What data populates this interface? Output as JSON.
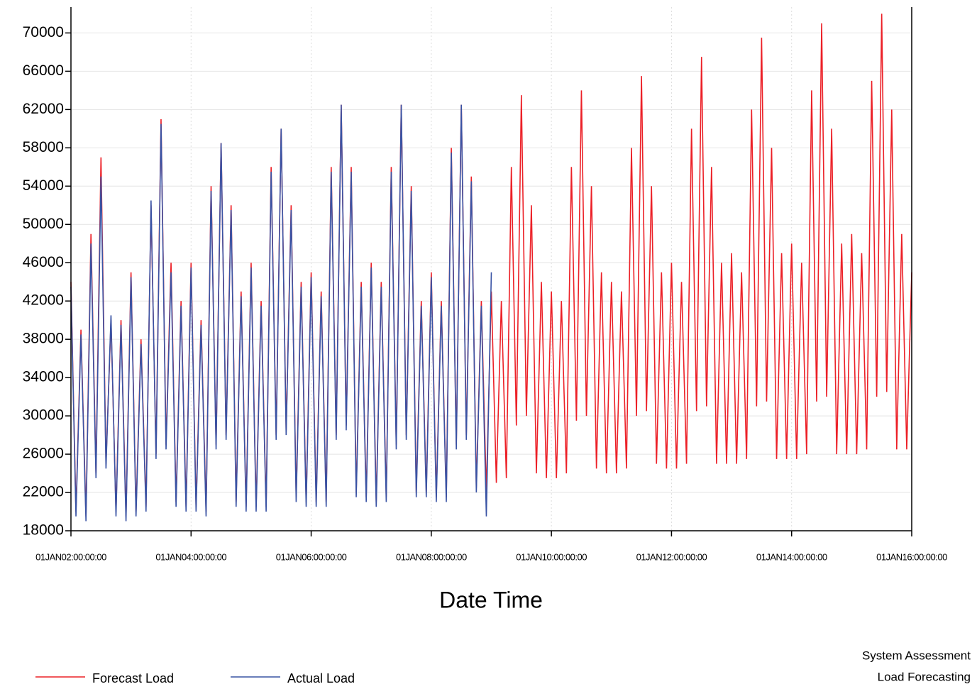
{
  "chart_data": {
    "type": "line",
    "x_label": "Date Time",
    "footnotes": [
      "System Assessment",
      "Load Forecasting"
    ],
    "legend": "bottom-left",
    "grid": true,
    "x": [
      "2002-01",
      "2002-02",
      "2002-03",
      "2002-04",
      "2002-05",
      "2002-06",
      "2002-07",
      "2002-08",
      "2002-09",
      "2002-10",
      "2002-11",
      "2002-12",
      "2003-01",
      "2003-02",
      "2003-03",
      "2003-04",
      "2003-05",
      "2003-06",
      "2003-07",
      "2003-08",
      "2003-09",
      "2003-10",
      "2003-11",
      "2003-12",
      "2004-01",
      "2004-02",
      "2004-03",
      "2004-04",
      "2004-05",
      "2004-06",
      "2004-07",
      "2004-08",
      "2004-09",
      "2004-10",
      "2004-11",
      "2004-12",
      "2005-01",
      "2005-02",
      "2005-03",
      "2005-04",
      "2005-05",
      "2005-06",
      "2005-07",
      "2005-08",
      "2005-09",
      "2005-10",
      "2005-11",
      "2005-12",
      "2006-01",
      "2006-02",
      "2006-03",
      "2006-04",
      "2006-05",
      "2006-06",
      "2006-07",
      "2006-08",
      "2006-09",
      "2006-10",
      "2006-11",
      "2006-12",
      "2007-01",
      "2007-02",
      "2007-03",
      "2007-04",
      "2007-05",
      "2007-06",
      "2007-07",
      "2007-08",
      "2007-09",
      "2007-10",
      "2007-11",
      "2007-12",
      "2008-01",
      "2008-02",
      "2008-03",
      "2008-04",
      "2008-05",
      "2008-06",
      "2008-07",
      "2008-08",
      "2008-09",
      "2008-10",
      "2008-11",
      "2008-12",
      "2009-01",
      "2009-02",
      "2009-03",
      "2009-04",
      "2009-05",
      "2009-06",
      "2009-07",
      "2009-08",
      "2009-09",
      "2009-10",
      "2009-11",
      "2009-12",
      "2010-01",
      "2010-02",
      "2010-03",
      "2010-04",
      "2010-05",
      "2010-06",
      "2010-07",
      "2010-08",
      "2010-09",
      "2010-10",
      "2010-11",
      "2010-12",
      "2011-01",
      "2011-02",
      "2011-03",
      "2011-04",
      "2011-05",
      "2011-06",
      "2011-07",
      "2011-08",
      "2011-09",
      "2011-10",
      "2011-11",
      "2011-12",
      "2012-01",
      "2012-02",
      "2012-03",
      "2012-04",
      "2012-05",
      "2012-06",
      "2012-07",
      "2012-08",
      "2012-09",
      "2012-10",
      "2012-11",
      "2012-12",
      "2013-01",
      "2013-02",
      "2013-03",
      "2013-04",
      "2013-05",
      "2013-06",
      "2013-07",
      "2013-08",
      "2013-09",
      "2013-10",
      "2013-11",
      "2013-12",
      "2014-01",
      "2014-02",
      "2014-03",
      "2014-04",
      "2014-05",
      "2014-06",
      "2014-07",
      "2014-08",
      "2014-09",
      "2014-10",
      "2014-11",
      "2014-12",
      "2015-01",
      "2015-02",
      "2015-03",
      "2015-04",
      "2015-05",
      "2015-06",
      "2015-07",
      "2015-08",
      "2015-09",
      "2015-10",
      "2015-11",
      "2015-12",
      "2016-01"
    ],
    "series": [
      {
        "name": "Forecast Load",
        "color": "#ec2027",
        "values": [
          44000,
          20000,
          39000,
          19500,
          49000,
          24000,
          57000,
          25000,
          40000,
          20000,
          40000,
          19500,
          45000,
          20000,
          38000,
          20500,
          52000,
          26000,
          61000,
          27000,
          46000,
          21000,
          42000,
          20500,
          46000,
          20500,
          40000,
          20000,
          54000,
          27000,
          58500,
          28000,
          52000,
          21000,
          43000,
          20500,
          46000,
          20500,
          42000,
          20500,
          56000,
          28000,
          60000,
          28500,
          52000,
          21500,
          44000,
          21000,
          45000,
          21000,
          43000,
          21000,
          56000,
          28000,
          62500,
          29000,
          56000,
          22000,
          44000,
          21500,
          46000,
          21000,
          44000,
          21500,
          56000,
          27000,
          62500,
          28000,
          54000,
          22000,
          42000,
          22000,
          45000,
          21500,
          42000,
          21500,
          58000,
          27000,
          62500,
          28000,
          55000,
          22500,
          42000,
          22000,
          43000,
          23000,
          42000,
          23500,
          56000,
          29000,
          63500,
          30000,
          52000,
          24000,
          44000,
          23500,
          43000,
          23500,
          42000,
          24000,
          56000,
          29500,
          64000,
          30000,
          54000,
          24500,
          45000,
          24000,
          44000,
          24000,
          43000,
          24500,
          58000,
          30000,
          65500,
          30500,
          54000,
          25000,
          45000,
          24500,
          46000,
          24500,
          44000,
          25000,
          60000,
          30500,
          67500,
          31000,
          56000,
          25000,
          46000,
          25000,
          47000,
          25000,
          45000,
          25500,
          62000,
          31000,
          69500,
          31500,
          58000,
          25500,
          47000,
          25500,
          48000,
          25500,
          46000,
          26000,
          64000,
          31500,
          71000,
          32000,
          60000,
          26000,
          48000,
          26000,
          49000,
          26000,
          47000,
          26500,
          65000,
          32000,
          72000,
          32500,
          62000,
          26500,
          49000,
          26500,
          45000
        ]
      },
      {
        "name": "Actual Load",
        "color": "#3953a4",
        "values": [
          43500,
          19500,
          38500,
          19000,
          48000,
          23500,
          55000,
          24500,
          40500,
          19500,
          39500,
          19000,
          44500,
          19500,
          37500,
          20000,
          52500,
          25500,
          60500,
          26500,
          45000,
          20500,
          41500,
          20000,
          45500,
          20000,
          39500,
          19500,
          53500,
          26500,
          58500,
          27500,
          51500,
          20500,
          42500,
          20000,
          45500,
          20000,
          41500,
          20000,
          55500,
          27500,
          60000,
          28000,
          51500,
          21000,
          43500,
          20500,
          44500,
          20500,
          42500,
          20500,
          55500,
          27500,
          62500,
          28500,
          55500,
          21500,
          43500,
          21000,
          45500,
          20500,
          43500,
          21000,
          55500,
          26500,
          62500,
          27500,
          53500,
          21500,
          41500,
          21500,
          44500,
          21000,
          41500,
          21000,
          57500,
          26500,
          62500,
          27500,
          54500,
          22000,
          41500,
          19500,
          45000,
          null,
          null,
          null,
          null,
          null,
          null,
          null,
          null,
          null,
          null,
          null,
          null,
          null,
          null,
          null,
          null,
          null,
          null,
          null,
          null,
          null,
          null,
          null,
          null,
          null,
          null,
          null,
          null,
          null,
          null,
          null,
          null,
          null,
          null,
          null,
          null,
          null,
          null,
          null,
          null,
          null,
          null,
          null,
          null,
          null,
          null,
          null,
          null,
          null,
          null,
          null,
          null,
          null,
          null,
          null,
          null,
          null,
          null,
          null,
          null,
          null,
          null,
          null,
          null,
          null,
          null,
          null,
          null,
          null,
          null,
          null,
          null,
          null,
          null,
          null,
          null,
          null,
          null,
          null,
          null,
          null,
          null,
          null,
          null
        ]
      }
    ],
    "xlim": [
      "2002-01",
      "2016-01"
    ],
    "xticks": [
      {
        "value": "2002-01",
        "label": "01JAN02:00:00:00"
      },
      {
        "value": "2004-01",
        "label": "01JAN04:00:00:00"
      },
      {
        "value": "2006-01",
        "label": "01JAN06:00:00:00"
      },
      {
        "value": "2008-01",
        "label": "01JAN08:00:00:00"
      },
      {
        "value": "2010-01",
        "label": "01JAN10:00:00:00"
      },
      {
        "value": "2012-01",
        "label": "01JAN12:00:00:00"
      },
      {
        "value": "2014-01",
        "label": "01JAN14:00:00:00"
      },
      {
        "value": "2016-01",
        "label": "01JAN16:00:00:00"
      }
    ],
    "ylim": [
      18000,
      72700
    ],
    "yticks": [
      18000,
      22000,
      26000,
      30000,
      34000,
      38000,
      42000,
      46000,
      50000,
      54000,
      58000,
      62000,
      66000,
      70000
    ]
  }
}
